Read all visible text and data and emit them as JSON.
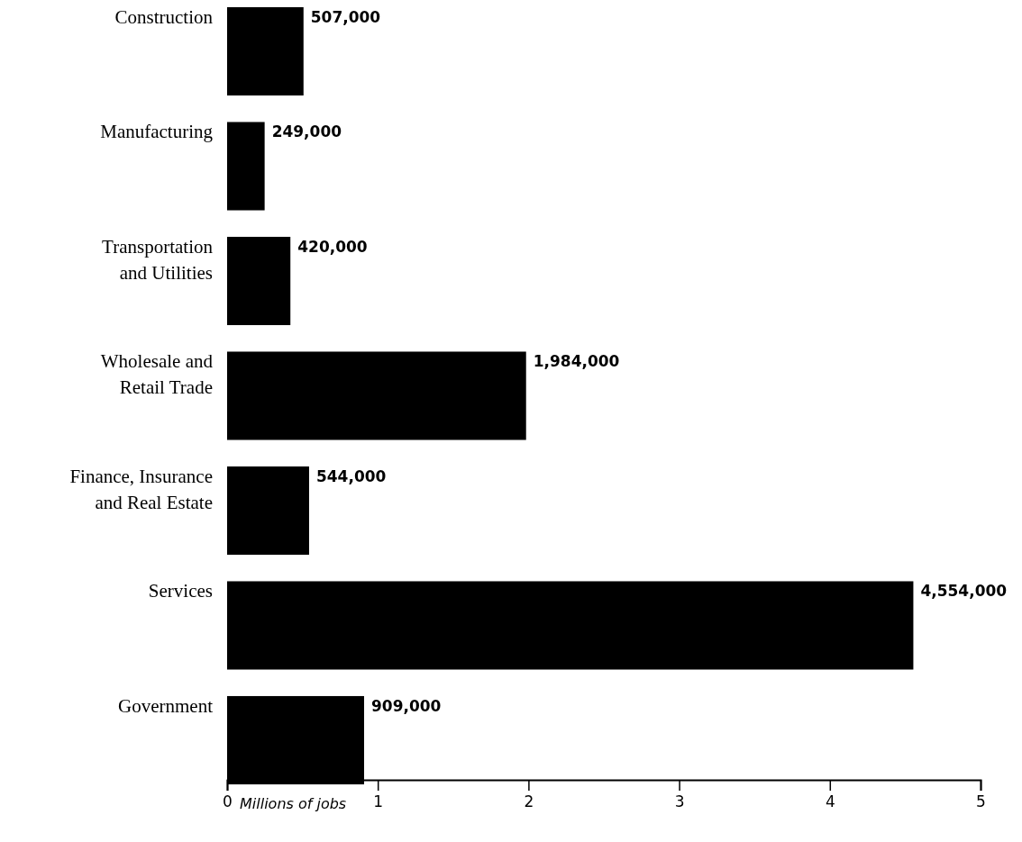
{
  "chart_data": {
    "type": "bar",
    "orientation": "horizontal",
    "categories": [
      "Construction",
      "Manufacturing",
      "Transportation and Utilities",
      "Wholesale and Retail Trade",
      "Finance, Insurance and Real Estate",
      "Services",
      "Government"
    ],
    "values": [
      0.507,
      0.249,
      0.42,
      1.984,
      0.544,
      4.554,
      0.909
    ],
    "annotations": [
      {
        "text": "507,000",
        "x": 0.507,
        "y": "Construction"
      },
      {
        "text": "249,000",
        "x": 0.249,
        "y": "Manufacturing"
      },
      {
        "text": "420,000",
        "x": 0.42,
        "y": "Transportation and Utilities"
      },
      {
        "text": "1,984,000",
        "x": 1.984,
        "y": "Wholesale and Retail Trade"
      },
      {
        "text": "544,000",
        "x": 0.544,
        "y": "Finance, Insurance and Real Estate"
      },
      {
        "text": "4,554,000",
        "x": 4.554,
        "y": "Services"
      },
      {
        "text": "909,000",
        "x": 0.909,
        "y": "Government"
      }
    ],
    "color": "#000000",
    "xlim": [
      0,
      5
    ],
    "xticks": [
      0,
      1,
      2,
      3,
      4,
      5
    ],
    "xlabel": "Millions of jobs",
    "grid": false
  }
}
